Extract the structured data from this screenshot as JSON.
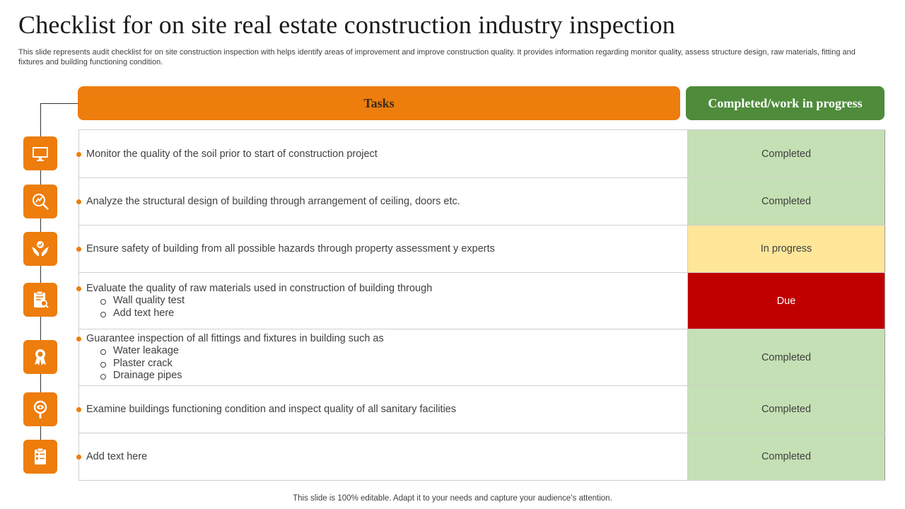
{
  "title": "Checklist for on site real estate construction industry inspection",
  "subtitle": "This slide represents audit checklist for on site construction inspection with helps identify areas of improvement and improve construction quality. It provides information regarding monitor quality, assess structure design, raw materials, fitting and fixtures and building functioning condition.",
  "headers": {
    "tasks": "Tasks",
    "status": "Completed/work in progress"
  },
  "colors": {
    "accent": "#ED7D0D",
    "status_header": "#4E8B3A",
    "completed": "#C5E0B4",
    "in_progress": "#FFE699",
    "due": "#C00000"
  },
  "rows": [
    {
      "icon": "monitor-icon",
      "task": "Monitor the quality of the soil prior to start of construction project",
      "subitems": [],
      "status": "Completed"
    },
    {
      "icon": "design-analysis-icon",
      "task": "Analyze the structural design of building through arrangement of ceiling, doors etc.",
      "subitems": [],
      "status": "Completed"
    },
    {
      "icon": "hands-safety-icon",
      "task": "Ensure safety of building from all possible hazards through property assessment y experts",
      "subitems": [],
      "status": "In progress"
    },
    {
      "icon": "clipboard-search-icon",
      "task": "Evaluate the quality of raw materials used in construction of building through",
      "subitems": [
        "Wall quality test",
        "Add text here"
      ],
      "status": "Due"
    },
    {
      "icon": "award-badge-icon",
      "task": "Guarantee inspection of all fittings and fixtures in building such as",
      "subitems": [
        "Water leakage",
        "Plaster crack",
        "Drainage pipes"
      ],
      "status": "Completed"
    },
    {
      "icon": "magnifier-eye-icon",
      "task": "Examine buildings functioning condition and inspect quality of all sanitary facilities",
      "subitems": [],
      "status": "Completed"
    },
    {
      "icon": "checklist-icon",
      "task": "Add text here",
      "subitems": [],
      "status": "Completed"
    }
  ],
  "footer": "This slide is 100% editable. Adapt it to your needs and capture your audience’s attention."
}
